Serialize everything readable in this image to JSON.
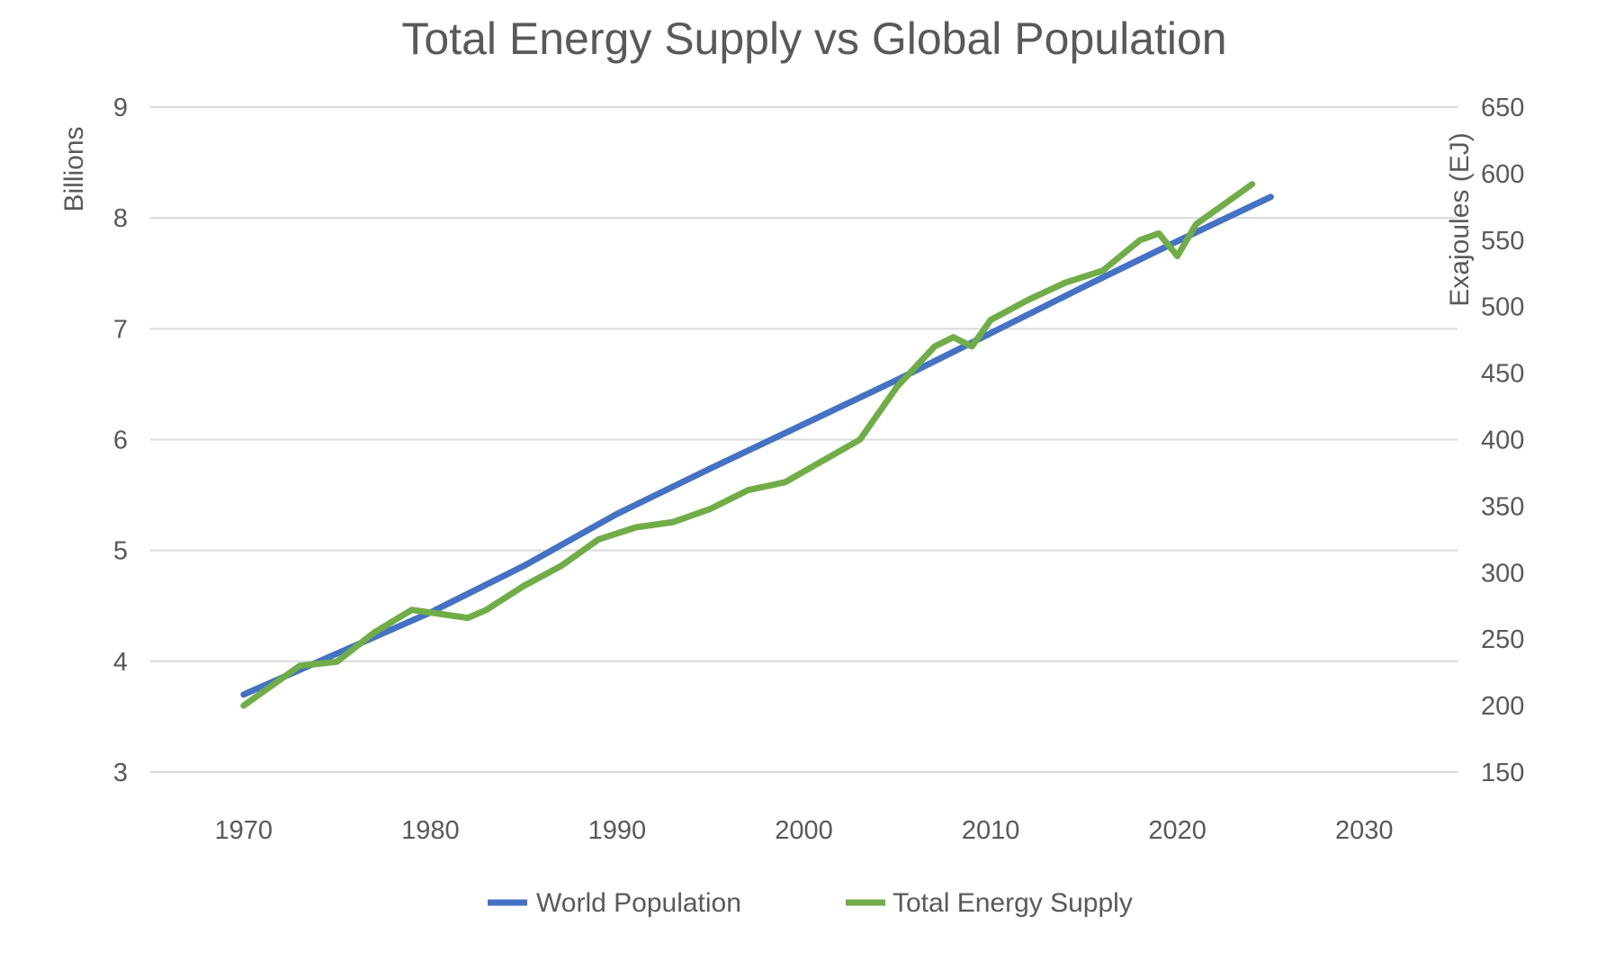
{
  "chart_data": {
    "type": "line",
    "title": "Total Energy Supply vs Global Population",
    "ylabel": "Billions",
    "y2label": "Exajoules (EJ)",
    "xlim": [
      1965,
      2035
    ],
    "ylim": [
      3,
      9
    ],
    "y2lim": [
      150,
      650
    ],
    "xticks": [
      1970,
      1980,
      1990,
      2000,
      2010,
      2020,
      2030
    ],
    "yticks": [
      3,
      4,
      5,
      6,
      7,
      8,
      9
    ],
    "y2ticks": [
      150,
      200,
      250,
      300,
      350,
      400,
      450,
      500,
      550,
      600,
      650
    ],
    "grid": true,
    "legend": "bottom",
    "series": [
      {
        "name": "World Population",
        "axis": "left",
        "color": "#4472C4",
        "x": [
          1970,
          1975,
          1980,
          1985,
          1990,
          1995,
          2000,
          2005,
          2010,
          2015,
          2020,
          2025
        ],
        "values": [
          3.7,
          4.07,
          4.44,
          4.86,
          5.33,
          5.74,
          6.14,
          6.54,
          6.96,
          7.38,
          7.79,
          8.19
        ]
      },
      {
        "name": "Total Energy Supply",
        "axis": "right",
        "color": "#70AD47",
        "x": [
          1970,
          1973,
          1975,
          1977,
          1979,
          1981,
          1982,
          1983,
          1985,
          1987,
          1989,
          1991,
          1993,
          1995,
          1997,
          1999,
          2001,
          2003,
          2005,
          2007,
          2008,
          2009,
          2010,
          2012,
          2014,
          2016,
          2018,
          2019,
          2020,
          2021,
          2022,
          2024
        ],
        "values": [
          200,
          230,
          233,
          255,
          272,
          268,
          266,
          272,
          290,
          305,
          325,
          334,
          338,
          348,
          362,
          368,
          384,
          400,
          440,
          470,
          477,
          470,
          490,
          505,
          518,
          527,
          550,
          555,
          538,
          562,
          572,
          592
        ]
      }
    ]
  }
}
